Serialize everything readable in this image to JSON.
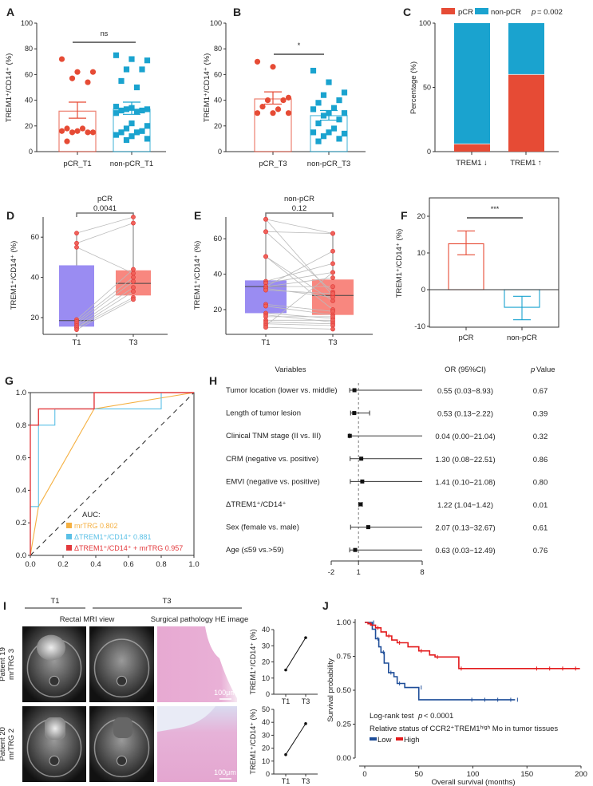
{
  "colors": {
    "pcr_red": "#e64b35",
    "nonpcr_blue": "#1aa3cf",
    "box_purple": "#9a8cf2",
    "box_salmon": "#f8877f",
    "roc_orange": "#f5b041",
    "roc_blue": "#5bc0e6",
    "roc_red": "#e3393c",
    "km_high": "#e31a1c",
    "km_low": "#1f4e99",
    "he_pink": "#e6a6cf"
  },
  "chart_data": [
    {
      "panel": "A",
      "type": "scatter-bar",
      "ylabel": "TREM1⁺/CD14⁺ (%)",
      "ylim": [
        0,
        100
      ],
      "yticks": [
        0,
        20,
        40,
        60,
        80,
        100
      ],
      "categories": [
        "pCR_T1",
        "non-pCR_T1"
      ],
      "series": [
        {
          "values": [
            72,
            62,
            62,
            57,
            54,
            18,
            18,
            16,
            16,
            15,
            15,
            15,
            8
          ],
          "mean": 31.5,
          "sem": [
            26,
            38.5
          ],
          "marker": "circle"
        },
        {
          "values": [
            75,
            72,
            71,
            64,
            64,
            55,
            50,
            35,
            34,
            33,
            33,
            32,
            32,
            31,
            30,
            22,
            20,
            18,
            16,
            15,
            15,
            13,
            12,
            10,
            9
          ],
          "mean": 33,
          "sem": [
            29,
            38.5
          ],
          "marker": "square"
        }
      ],
      "significance": "ns"
    },
    {
      "panel": "B",
      "type": "scatter-bar",
      "ylabel": "TREM1⁺/CD14⁺ (%)",
      "ylim": [
        0,
        100
      ],
      "yticks": [
        0,
        20,
        40,
        60,
        80,
        100
      ],
      "categories": [
        "pCR_T3",
        "non-pCR_T3"
      ],
      "series": [
        {
          "values": [
            70,
            66,
            42,
            40,
            40,
            35,
            33,
            30,
            30,
            30
          ],
          "mean": 41,
          "sem": [
            37,
            46.5
          ],
          "marker": "circle"
        },
        {
          "values": [
            63,
            54,
            46,
            44,
            40,
            38,
            34,
            33,
            30,
            30,
            28,
            25,
            22,
            18,
            15,
            15,
            14,
            12,
            10,
            8
          ],
          "mean": 28,
          "sem": [
            24.5,
            32
          ],
          "marker": "square"
        }
      ],
      "significance": "*"
    },
    {
      "panel": "C",
      "type": "bar-stacked",
      "ylabel": "Percentage (%)",
      "ylim": [
        0,
        100
      ],
      "yticks": [
        0,
        50,
        100
      ],
      "categories": [
        "TREM1 ↓",
        "TREM1 ↑"
      ],
      "series": [
        {
          "name": "pCR",
          "values": [
            6,
            60
          ]
        },
        {
          "name": "non-pCR",
          "values": [
            94,
            40
          ]
        }
      ],
      "p_symbol": "p",
      "p_text": "= 0.002",
      "legend": "top"
    },
    {
      "panel": "D",
      "type": "box-paired",
      "title": "pCR",
      "p_value": "0.0041",
      "ylabel": "TREM1⁺/CD14⁺ (%)",
      "yticks": [
        20,
        40,
        60
      ],
      "categories": [
        "T1",
        "T3"
      ],
      "boxes": [
        {
          "min": 14,
          "q1": 15.5,
          "median": 18.5,
          "q3": 46,
          "max": 62
        },
        {
          "min": 29,
          "q1": 31,
          "median": 37,
          "q3": 43.5,
          "max": 70
        }
      ],
      "pairs": [
        [
          62,
          70
        ],
        [
          57,
          67
        ],
        [
          55,
          42
        ],
        [
          19,
          44
        ],
        [
          18,
          40
        ],
        [
          17,
          38
        ],
        [
          16,
          35
        ],
        [
          15,
          33
        ],
        [
          15,
          30
        ],
        [
          14,
          29
        ]
      ]
    },
    {
      "panel": "E",
      "type": "box-paired",
      "title": "non-pCR",
      "p_value": "0.12",
      "ylabel": "TREM1⁺/CD14⁺ (%)",
      "yticks": [
        20,
        40,
        60
      ],
      "categories": [
        "T1",
        "T3"
      ],
      "boxes": [
        {
          "min": 10,
          "q1": 18,
          "median": 33,
          "q3": 36.5,
          "max": 71
        },
        {
          "min": 9,
          "q1": 17,
          "median": 28,
          "q3": 37,
          "max": 63
        }
      ],
      "pairs": [
        [
          71,
          28
        ],
        [
          71,
          63
        ],
        [
          64,
          63
        ],
        [
          64,
          30
        ],
        [
          50,
          20
        ],
        [
          50,
          25
        ],
        [
          36,
          46
        ],
        [
          35,
          41
        ],
        [
          33,
          38
        ],
        [
          33,
          33
        ],
        [
          33,
          53
        ],
        [
          32,
          27
        ],
        [
          31,
          29
        ],
        [
          23,
          19
        ],
        [
          22,
          17
        ],
        [
          18,
          15
        ],
        [
          17,
          13
        ],
        [
          16,
          16
        ],
        [
          14,
          14
        ],
        [
          13,
          12
        ],
        [
          12,
          11
        ],
        [
          11,
          41
        ],
        [
          10,
          9
        ]
      ]
    },
    {
      "panel": "F",
      "type": "bar-error",
      "ylabel": "TREM1⁺/CD14⁺ (%)",
      "ylim": [
        -10,
        25
      ],
      "yticks": [
        -10,
        0,
        10,
        20
      ],
      "categories": [
        "pCR",
        "non-pCR"
      ],
      "values": [
        12.5,
        -4.8
      ],
      "errors": [
        [
          9.5,
          16
        ],
        [
          -8.2,
          -1.8
        ]
      ],
      "significance": "***"
    },
    {
      "panel": "G",
      "type": "line",
      "xlim": [
        0,
        1
      ],
      "ylim": [
        0,
        1
      ],
      "ticks": [
        "0.0",
        "0.2",
        "0.4",
        "0.6",
        "0.8",
        "1.0"
      ],
      "legend_title": "AUC:",
      "series": [
        {
          "name": "mrTRG 0.802",
          "points": [
            [
              0,
              0
            ],
            [
              0.05,
              0.3
            ],
            [
              0.39,
              0.9
            ],
            [
              1,
              1
            ]
          ]
        },
        {
          "name": "ΔTREM1⁺/CD14⁺ 0.881",
          "points": [
            [
              0,
              0
            ],
            [
              0,
              0.3
            ],
            [
              0.05,
              0.3
            ],
            [
              0.05,
              0.8
            ],
            [
              0.15,
              0.8
            ],
            [
              0.15,
              0.9
            ],
            [
              0.8,
              0.9
            ],
            [
              0.8,
              1
            ],
            [
              1,
              1
            ]
          ]
        },
        {
          "name": "ΔTREM1⁺/CD14⁺ + mrTRG 0.957",
          "points": [
            [
              0,
              0
            ],
            [
              0,
              0.8
            ],
            [
              0.05,
              0.8
            ],
            [
              0.05,
              0.9
            ],
            [
              0.39,
              0.9
            ],
            [
              0.39,
              1
            ],
            [
              1,
              1
            ]
          ]
        }
      ],
      "reference_line": "dashed diagonal"
    },
    {
      "panel": "H",
      "type": "forest",
      "headers": {
        "variables": "Variables",
        "or": "OR (95%CI)",
        "p_symbol": "p",
        "p_word": "Value"
      },
      "xticks": [
        "-2",
        "1",
        "8"
      ],
      "xlim": [
        -2,
        8
      ],
      "reference": 1,
      "rows": [
        {
          "label": "Tumor location (lower vs. middle)",
          "or": 0.55,
          "lo": 0.03,
          "hi": 8.93,
          "text": "0.55 (0.03−8.93)",
          "p": "0.67"
        },
        {
          "label": "Length of tumor lesion",
          "or": 0.53,
          "lo": 0.13,
          "hi": 2.22,
          "text": "0.53 (0.13−2.22)",
          "p": "0.39"
        },
        {
          "label": "Clinical TNM stage (II vs. III)",
          "or": 0.04,
          "lo": 0.0,
          "hi": 21.04,
          "text": "0.04 (0.00−21.04)",
          "p": "0.32"
        },
        {
          "label": "CRM (negative vs. positive)",
          "or": 1.3,
          "lo": 0.08,
          "hi": 22.51,
          "text": "1.30 (0.08−22.51)",
          "p": "0.86"
        },
        {
          "label": "EMVI (negative vs. positive)",
          "or": 1.41,
          "lo": 0.1,
          "hi": 21.08,
          "text": "1.41 (0.10−21.08)",
          "p": "0.80"
        },
        {
          "label": "ΔTREM1⁺/CD14⁺",
          "or": 1.22,
          "lo": 1.04,
          "hi": 1.42,
          "text": "1.22 (1.04−1.42)",
          "p": "0.01"
        },
        {
          "label": "Sex (female vs. male)",
          "or": 2.07,
          "lo": 0.13,
          "hi": 32.67,
          "text": "2.07 (0.13−32.67)",
          "p": "0.61"
        },
        {
          "label": "Age (≤59 vs.>59)",
          "or": 0.63,
          "lo": 0.03,
          "hi": 12.49,
          "text": "0.63 (0.03−12.49)",
          "p": "0.76"
        }
      ]
    },
    {
      "panel": "I",
      "type": "image-with-line",
      "timepoints": [
        "T1",
        "T3"
      ],
      "column_headers": [
        "Rectal MRI view",
        "Surgical pathology HE image"
      ],
      "scale_bar": "100μm",
      "ylabel": "TREM1⁺/CD14⁺ (%)",
      "patients": [
        {
          "name": "Patient 19",
          "grade": "mrTRG 3",
          "values": [
            15,
            35
          ],
          "yticks": [
            0,
            10,
            20,
            30,
            40
          ]
        },
        {
          "name": "Patient 20",
          "grade": "mrTRG 2",
          "values": [
            15,
            39
          ],
          "yticks": [
            0,
            10,
            20,
            30,
            40,
            50
          ]
        }
      ]
    },
    {
      "panel": "J",
      "type": "survival",
      "xlabel": "Overall survival (months)",
      "ylabel": "Survival probability",
      "xticks": [
        0,
        50,
        100,
        150,
        200
      ],
      "yticks": [
        "0.00",
        "0.25",
        "0.50",
        "0.75",
        "1.00"
      ],
      "test_label": "Log-rank test",
      "p_symbol": "p",
      "p_text": "< 0.0001",
      "legend_title": "Relative status of CCR2⁺TREM1ʰⁱᵍʰ Mo in tumor tissues",
      "series": [
        {
          "name": "Low",
          "points": [
            [
              0,
              1
            ],
            [
              6,
              1
            ],
            [
              7,
              0.95
            ],
            [
              10,
              0.88
            ],
            [
              13,
              0.82
            ],
            [
              15,
              0.78
            ],
            [
              18,
              0.7
            ],
            [
              22,
              0.63
            ],
            [
              27,
              0.6
            ],
            [
              30,
              0.55
            ],
            [
              37,
              0.52
            ],
            [
              50,
              0.52
            ],
            [
              50,
              0.43
            ],
            [
              139,
              0.43
            ]
          ]
        },
        {
          "name": "High",
          "points": [
            [
              0,
              1
            ],
            [
              3,
              0.99
            ],
            [
              6,
              0.98
            ],
            [
              10,
              0.96
            ],
            [
              15,
              0.93
            ],
            [
              20,
              0.9
            ],
            [
              25,
              0.87
            ],
            [
              30,
              0.85
            ],
            [
              40,
              0.82
            ],
            [
              50,
              0.79
            ],
            [
              60,
              0.76
            ],
            [
              65,
              0.745
            ],
            [
              86,
              0.745
            ],
            [
              87,
              0.66
            ],
            [
              199,
              0.66
            ]
          ]
        }
      ]
    }
  ]
}
